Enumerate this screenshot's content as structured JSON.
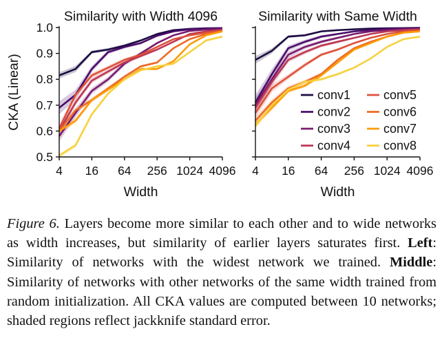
{
  "figure_label": "Figure 6.",
  "caption_parts": {
    "intro": "Layers become more similar to each other and to wide networks as width increases, but similarity of earlier layers saturates first.",
    "left_label": "Left",
    "left_text": ": Similarity of networks with the widest network we trained.",
    "middle_label": "Middle",
    "middle_text": ": Similarity of networks with other networks of the same width trained from random initialization. All CKA values are computed between 10 networks; shaded regions reflect jackknife standard error."
  },
  "chart_data": [
    {
      "type": "line",
      "title": "Similarity with Width 4096",
      "xlabel": "Width",
      "ylabel": "CKA (Linear)",
      "x_scale": "log2",
      "x": [
        4,
        8,
        16,
        32,
        64,
        128,
        256,
        512,
        1024,
        2048,
        4096
      ],
      "xticks": [
        "4",
        "16",
        "64",
        "256",
        "1024",
        "4096"
      ],
      "xtick_values": [
        4,
        16,
        64,
        256,
        1024,
        4096
      ],
      "ylim": [
        0.5,
        1.0
      ],
      "yticks": [
        "0.5",
        "0.6",
        "0.7",
        "0.8",
        "0.9",
        "1.0"
      ],
      "series": [
        {
          "name": "conv1",
          "color": "#1b0c41",
          "values": [
            0.815,
            0.84,
            0.905,
            0.915,
            0.93,
            0.95,
            0.975,
            0.99,
            0.995,
            0.997,
            0.998
          ],
          "err": [
            0.012,
            0.012,
            0.006,
            0.006,
            0.005,
            0.004,
            0.003,
            0.002,
            0.001,
            0.001,
            0.001
          ]
        },
        {
          "name": "conv2",
          "color": "#4a0c6b",
          "values": [
            0.69,
            0.74,
            0.84,
            0.905,
            0.925,
            0.94,
            0.968,
            0.985,
            0.993,
            0.996,
            0.998
          ],
          "err": [
            0.025,
            0.02,
            0.012,
            0.008,
            0.006,
            0.005,
            0.003,
            0.002,
            0.001,
            0.001,
            0.001
          ]
        },
        {
          "name": "conv3",
          "color": "#781c6d",
          "values": [
            0.58,
            0.67,
            0.755,
            0.8,
            0.86,
            0.9,
            0.94,
            0.97,
            0.987,
            0.992,
            0.995
          ],
          "err": [
            0.02,
            0.018,
            0.012,
            0.01,
            0.008,
            0.006,
            0.004,
            0.003,
            0.002,
            0.001,
            0.001
          ]
        },
        {
          "name": "conv4",
          "color": "#bc3754",
          "values": [
            0.6,
            0.71,
            0.795,
            0.83,
            0.865,
            0.89,
            0.915,
            0.945,
            0.975,
            0.985,
            0.99
          ],
          "err": [
            0.015,
            0.012,
            0.01,
            0.008,
            0.007,
            0.006,
            0.004,
            0.003,
            0.002,
            0.002,
            0.001
          ]
        },
        {
          "name": "conv5",
          "color": "#dd513a",
          "values": [
            0.61,
            0.74,
            0.815,
            0.845,
            0.875,
            0.895,
            0.925,
            0.955,
            0.97,
            0.98,
            0.99
          ],
          "err": [
            0.015,
            0.012,
            0.01,
            0.008,
            0.007,
            0.005,
            0.004,
            0.003,
            0.002,
            0.002,
            0.001
          ]
        },
        {
          "name": "conv6",
          "color": "#ed6925",
          "values": [
            0.6,
            0.68,
            0.72,
            0.765,
            0.81,
            0.85,
            0.865,
            0.92,
            0.955,
            0.975,
            0.985
          ],
          "err": [
            0.012,
            0.01,
            0.008,
            0.007,
            0.006,
            0.005,
            0.004,
            0.003,
            0.002,
            0.002,
            0.001
          ]
        },
        {
          "name": "conv7",
          "color": "#fb9b06",
          "values": [
            0.6,
            0.64,
            0.72,
            0.76,
            0.8,
            0.84,
            0.84,
            0.87,
            0.935,
            0.97,
            0.985
          ],
          "err": [
            0.012,
            0.01,
            0.008,
            0.007,
            0.006,
            0.005,
            0.004,
            0.003,
            0.002,
            0.002,
            0.001
          ]
        },
        {
          "name": "conv8",
          "color": "#f7d13d",
          "values": [
            0.505,
            0.545,
            0.665,
            0.745,
            0.8,
            0.835,
            0.85,
            0.86,
            0.905,
            0.95,
            0.965
          ],
          "err": [
            0.008,
            0.008,
            0.007,
            0.006,
            0.005,
            0.004,
            0.004,
            0.003,
            0.003,
            0.002,
            0.002
          ]
        }
      ]
    },
    {
      "type": "line",
      "title": "Similarity with Same Width",
      "xlabel": "Width",
      "ylabel": "",
      "x_scale": "log2",
      "x": [
        4,
        8,
        16,
        32,
        64,
        128,
        256,
        512,
        1024,
        2048,
        4096
      ],
      "xticks": [
        "4",
        "16",
        "64",
        "256",
        "1024",
        "4096"
      ],
      "xtick_values": [
        4,
        16,
        64,
        256,
        1024,
        4096
      ],
      "ylim": [
        0.5,
        1.0
      ],
      "series": [
        {
          "name": "conv1",
          "color": "#1b0c41",
          "values": [
            0.875,
            0.91,
            0.965,
            0.97,
            0.985,
            0.99,
            0.993,
            0.996,
            0.997,
            0.998,
            0.999
          ],
          "err": [
            0.015,
            0.01,
            0.005,
            0.004,
            0.003,
            0.002,
            0.002,
            0.001,
            0.001,
            0.001,
            0.001
          ]
        },
        {
          "name": "conv2",
          "color": "#4a0c6b",
          "values": [
            0.71,
            0.82,
            0.92,
            0.945,
            0.965,
            0.975,
            0.985,
            0.99,
            0.995,
            0.997,
            0.998
          ],
          "err": [
            0.03,
            0.02,
            0.01,
            0.008,
            0.006,
            0.004,
            0.003,
            0.002,
            0.001,
            0.001,
            0.001
          ]
        },
        {
          "name": "conv3",
          "color": "#781c6d",
          "values": [
            0.7,
            0.8,
            0.895,
            0.925,
            0.945,
            0.96,
            0.975,
            0.985,
            0.99,
            0.993,
            0.995
          ],
          "err": [
            0.03,
            0.02,
            0.012,
            0.008,
            0.006,
            0.005,
            0.003,
            0.002,
            0.002,
            0.001,
            0.001
          ]
        },
        {
          "name": "conv4",
          "color": "#bc3754",
          "values": [
            0.69,
            0.79,
            0.875,
            0.905,
            0.93,
            0.945,
            0.96,
            0.975,
            0.985,
            0.99,
            0.993
          ],
          "err": [
            0.025,
            0.018,
            0.01,
            0.008,
            0.006,
            0.005,
            0.003,
            0.002,
            0.002,
            0.001,
            0.001
          ]
        },
        {
          "name": "conv5",
          "color": "#dd513a",
          "values": [
            0.67,
            0.765,
            0.81,
            0.855,
            0.895,
            0.915,
            0.94,
            0.96,
            0.975,
            0.985,
            0.99
          ],
          "err": [
            0.02,
            0.015,
            0.01,
            0.008,
            0.006,
            0.005,
            0.004,
            0.003,
            0.002,
            0.001,
            0.001
          ]
        },
        {
          "name": "conv6",
          "color": "#ed6925",
          "values": [
            0.64,
            0.71,
            0.765,
            0.79,
            0.82,
            0.875,
            0.92,
            0.945,
            0.965,
            0.98,
            0.985
          ],
          "err": [
            0.015,
            0.012,
            0.01,
            0.008,
            0.006,
            0.005,
            0.004,
            0.003,
            0.002,
            0.001,
            0.001
          ]
        },
        {
          "name": "conv7",
          "color": "#fb9b06",
          "values": [
            0.625,
            0.69,
            0.755,
            0.775,
            0.815,
            0.865,
            0.915,
            0.94,
            0.965,
            0.98,
            0.985
          ],
          "err": [
            0.012,
            0.01,
            0.008,
            0.007,
            0.006,
            0.005,
            0.004,
            0.003,
            0.002,
            0.001,
            0.001
          ]
        },
        {
          "name": "conv8",
          "color": "#f7d13d",
          "values": [
            0.62,
            0.7,
            0.76,
            0.79,
            0.8,
            0.82,
            0.845,
            0.88,
            0.925,
            0.955,
            0.965
          ],
          "err": [
            0.01,
            0.009,
            0.008,
            0.007,
            0.006,
            0.005,
            0.004,
            0.003,
            0.003,
            0.002,
            0.002
          ]
        }
      ]
    }
  ]
}
